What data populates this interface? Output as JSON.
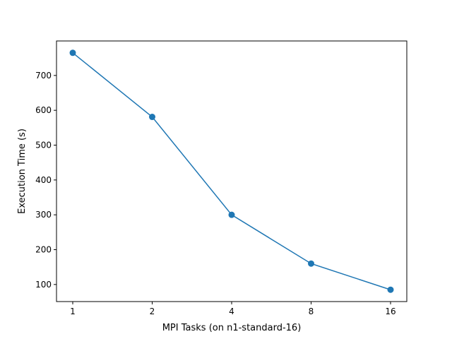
{
  "chart_data": {
    "type": "line",
    "title": "",
    "xlabel": "MPI Tasks (on n1-standard-16)",
    "ylabel": "Execution Time (s)",
    "x_scale": "log2",
    "categories": [
      "1",
      "2",
      "4",
      "8",
      "16"
    ],
    "x": [
      1,
      2,
      4,
      8,
      16
    ],
    "series": [
      {
        "values": [
          765,
          581,
          300,
          160,
          85
        ]
      }
    ],
    "x_ticks": [
      "1",
      "2",
      "4",
      "8",
      "16"
    ],
    "y_ticks": [
      100,
      200,
      300,
      400,
      500,
      600,
      700
    ],
    "ylim": [
      51,
      799
    ],
    "grid": false,
    "legend": false,
    "colors": {
      "line": "#1f77b4",
      "marker": "#1f77b4",
      "axes": "#000000"
    },
    "marker": "circle"
  }
}
